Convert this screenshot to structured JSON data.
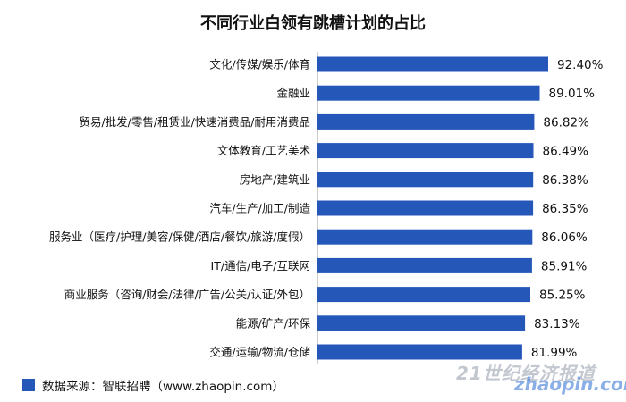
{
  "chart_data": {
    "type": "bar",
    "orientation": "horizontal",
    "title": "不同行业白领有跳槽计划的占比",
    "categories": [
      "文化/传媒/娱乐/体育",
      "金融业",
      "贸易/批发/零售/租赁业/快速消费品/耐用消费品",
      "文体教育/工艺美术",
      "房地产/建筑业",
      "汽车/生产/加工/制造",
      "服务业（医疗/护理/美容/保健/酒店/餐饮/旅游/度假）",
      "IT/通信/电子/互联网",
      "商业服务（咨询/财会/法律/广告/公关/认证/外包）",
      "能源/矿产/环保",
      "交通/运输/物流/仓储"
    ],
    "values": [
      92.4,
      89.01,
      86.82,
      86.49,
      86.38,
      86.35,
      86.06,
      85.91,
      85.25,
      83.13,
      81.99
    ],
    "value_labels": [
      "92.40%",
      "89.01%",
      "86.82%",
      "86.49%",
      "86.38%",
      "86.35%",
      "86.06%",
      "85.91%",
      "85.25%",
      "83.13%",
      "81.99%"
    ],
    "unit": "%",
    "xlim": [
      0,
      100
    ],
    "grid": false,
    "bar_color": "#2557b8"
  },
  "source_text": "数据来源：智联招聘（www.zhaopin.com）",
  "watermark": {
    "line1": "21世纪经济报道",
    "line2": "zhaopin.com"
  }
}
